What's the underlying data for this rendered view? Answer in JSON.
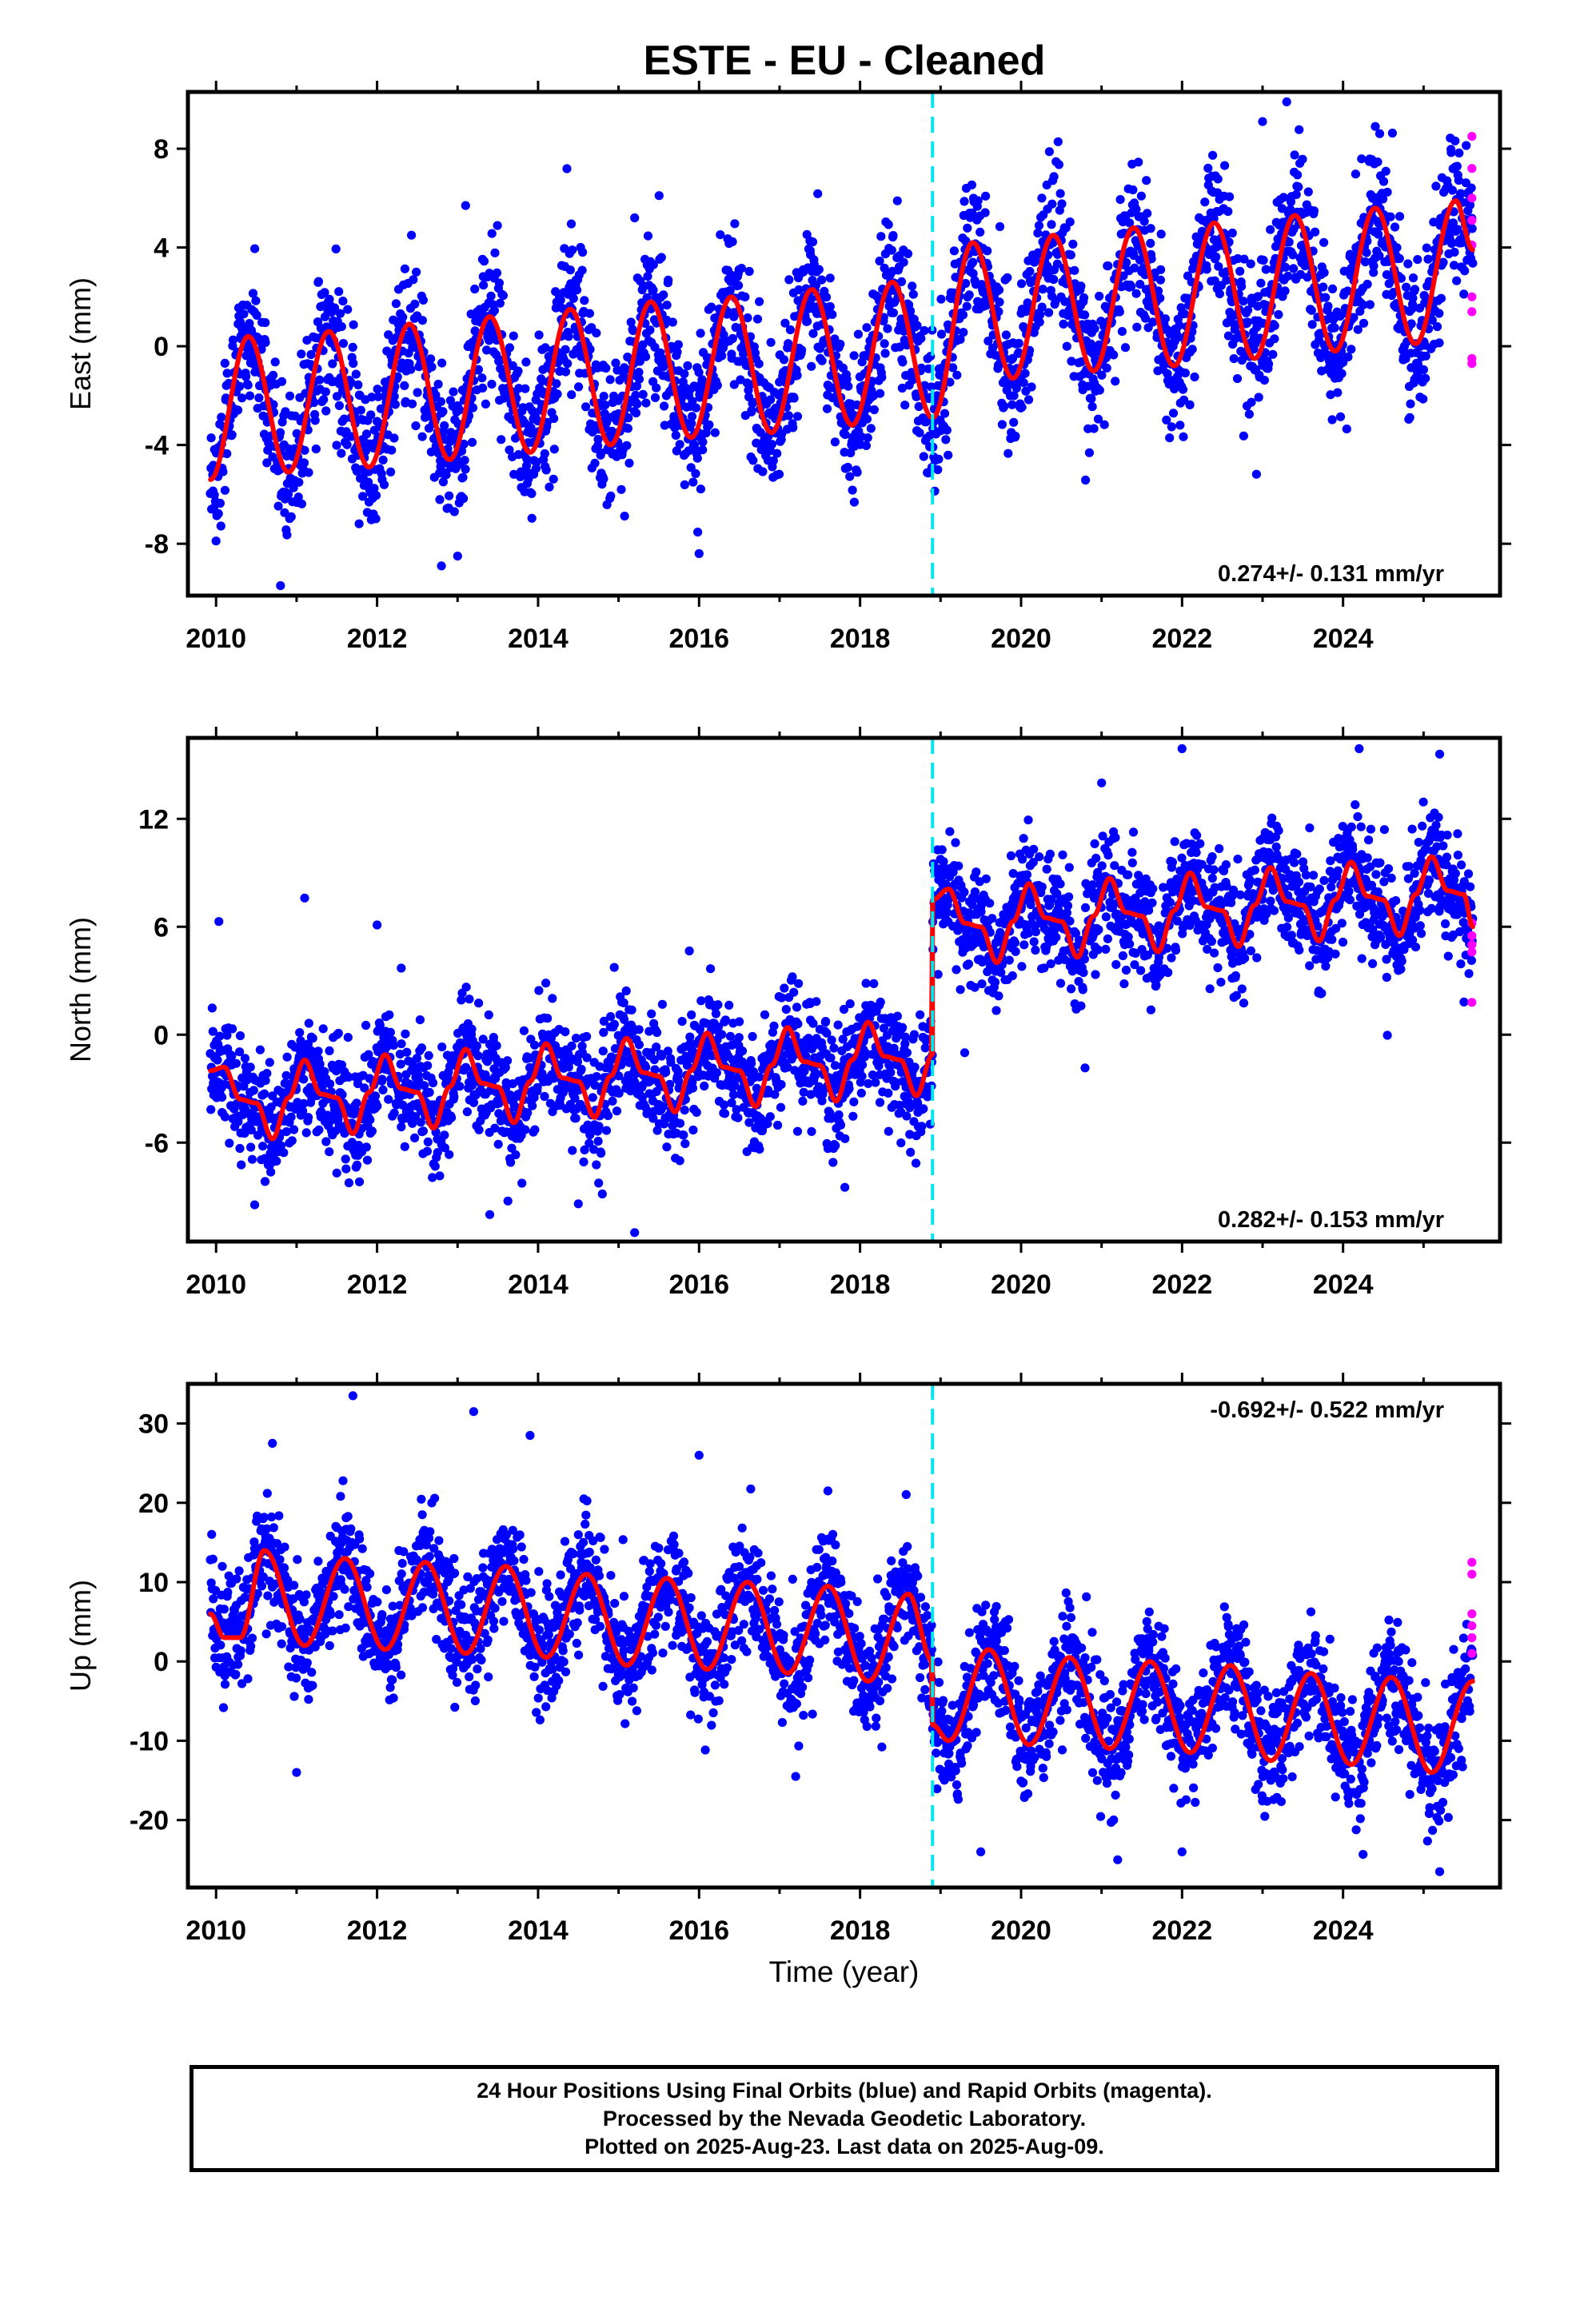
{
  "title": "ESTE  - EU - Cleaned",
  "colors": {
    "final_orbits": "#0000ff",
    "rapid_orbits": "#ff00ff",
    "model_fit": "#ff0000",
    "equipment_change": "#00e5ee",
    "axes": "#000000"
  },
  "caption": {
    "line1": "24 Hour Positions Using Final Orbits (blue) and Rapid Orbits (magenta).",
    "line2": "Processed by the Nevada Geodetic Laboratory.",
    "line3": "Plotted on 2025-Aug-23. Last data on 2025-Aug-09."
  },
  "chart_data": [
    {
      "type": "scatter",
      "component": "east",
      "ylabel": "East (mm)",
      "xlabel": "",
      "xlim": [
        2009.65,
        2025.95
      ],
      "ylim": [
        -10.1,
        10.3
      ],
      "xticks": [
        "2010",
        "2012",
        "2014",
        "2016",
        "2018",
        "2020",
        "2022",
        "2024"
      ],
      "yticks": [
        "-8",
        "-4",
        "0",
        "4",
        "8"
      ],
      "rate_label": "0.274+/- 0.131 mm/yr",
      "rate_label_position": "bottom-right",
      "equipment_change_year": 2018.9,
      "data_start_year": 2009.93,
      "data_end_year": 2025.61,
      "series": [
        {
          "kind": "model",
          "points": [
            [
              2009.93,
              -5.4
            ],
            [
              2010.4,
              0.4
            ],
            [
              2010.9,
              -5.1
            ],
            [
              2011.4,
              0.6
            ],
            [
              2011.9,
              -4.9
            ],
            [
              2012.4,
              0.9
            ],
            [
              2012.9,
              -4.6
            ],
            [
              2013.4,
              1.2
            ],
            [
              2013.9,
              -4.3
            ],
            [
              2014.4,
              1.5
            ],
            [
              2014.9,
              -4.0
            ],
            [
              2015.4,
              1.8
            ],
            [
              2015.9,
              -3.7
            ],
            [
              2016.4,
              2.0
            ],
            [
              2016.9,
              -3.5
            ],
            [
              2017.4,
              2.3
            ],
            [
              2017.9,
              -3.2
            ],
            [
              2018.4,
              2.6
            ],
            [
              2018.9,
              -2.9
            ],
            [
              2019.4,
              4.2
            ],
            [
              2019.9,
              -1.3
            ],
            [
              2020.4,
              4.5
            ],
            [
              2020.9,
              -1.0
            ],
            [
              2021.4,
              4.8
            ],
            [
              2021.9,
              -0.8
            ],
            [
              2022.4,
              5.0
            ],
            [
              2022.9,
              -0.5
            ],
            [
              2023.4,
              5.3
            ],
            [
              2023.9,
              -0.2
            ],
            [
              2024.4,
              5.6
            ],
            [
              2024.9,
              0.1
            ],
            [
              2025.4,
              5.9
            ],
            [
              2025.61,
              3.9
            ]
          ]
        },
        {
          "kind": "rapid_orbits",
          "points": [
            [
              2025.6,
              8.5
            ],
            [
              2025.6,
              7.2
            ],
            [
              2025.6,
              6.0
            ],
            [
              2025.6,
              5.1
            ],
            [
              2025.6,
              4.1
            ],
            [
              2025.6,
              2.0
            ],
            [
              2025.6,
              1.4
            ],
            [
              2025.6,
              -0.5
            ],
            [
              2025.6,
              -0.7
            ]
          ]
        }
      ],
      "scatter_sigma": 1.5,
      "outliers": [
        [
          2010.8,
          -9.7
        ],
        [
          2012.8,
          -8.9
        ],
        [
          2013.0,
          -8.5
        ],
        [
          2016.0,
          -8.4
        ],
        [
          2013.1,
          5.7
        ],
        [
          2015.2,
          5.2
        ],
        [
          2023.0,
          9.1
        ],
        [
          2023.3,
          9.9
        ],
        [
          2024.4,
          8.9
        ]
      ]
    },
    {
      "type": "scatter",
      "component": "north",
      "ylabel": "North (mm)",
      "xlabel": "",
      "xlim": [
        2009.65,
        2025.95
      ],
      "ylim": [
        -11.5,
        16.5
      ],
      "xticks": [
        "2010",
        "2012",
        "2014",
        "2016",
        "2018",
        "2020",
        "2022",
        "2024"
      ],
      "yticks": [
        "-6",
        "0",
        "6",
        "12"
      ],
      "rate_label": "0.282+/- 0.153 mm/yr",
      "rate_label_position": "bottom-right",
      "equipment_change_year": 2018.9,
      "data_start_year": 2009.93,
      "data_end_year": 2025.61,
      "series": [
        {
          "kind": "model",
          "points": [
            [
              2009.93,
              -2.0
            ],
            [
              2010.1,
              -1.8
            ],
            [
              2010.3,
              -3.6
            ],
            [
              2010.5,
              -3.8
            ],
            [
              2010.7,
              -5.8
            ],
            [
              2010.9,
              -3.5
            ],
            [
              2011.1,
              -1.4
            ],
            [
              2011.3,
              -3.3
            ],
            [
              2011.5,
              -3.5
            ],
            [
              2011.7,
              -5.5
            ],
            [
              2011.9,
              -3.2
            ],
            [
              2012.1,
              -1.1
            ],
            [
              2012.3,
              -3.0
            ],
            [
              2012.5,
              -3.2
            ],
            [
              2012.7,
              -5.2
            ],
            [
              2012.9,
              -2.9
            ],
            [
              2013.1,
              -0.8
            ],
            [
              2013.3,
              -2.7
            ],
            [
              2013.5,
              -2.9
            ],
            [
              2013.7,
              -4.9
            ],
            [
              2013.9,
              -2.6
            ],
            [
              2014.1,
              -0.5
            ],
            [
              2014.3,
              -2.4
            ],
            [
              2014.5,
              -2.6
            ],
            [
              2014.7,
              -4.6
            ],
            [
              2014.9,
              -2.3
            ],
            [
              2015.1,
              -0.2
            ],
            [
              2015.3,
              -2.1
            ],
            [
              2015.5,
              -2.3
            ],
            [
              2015.7,
              -4.3
            ],
            [
              2015.9,
              -2.0
            ],
            [
              2016.1,
              0.1
            ],
            [
              2016.3,
              -1.8
            ],
            [
              2016.5,
              -2.0
            ],
            [
              2016.7,
              -4.0
            ],
            [
              2016.9,
              -1.7
            ],
            [
              2017.1,
              0.4
            ],
            [
              2017.3,
              -1.5
            ],
            [
              2017.5,
              -1.7
            ],
            [
              2017.7,
              -3.7
            ],
            [
              2017.9,
              -1.4
            ],
            [
              2018.1,
              0.7
            ],
            [
              2018.3,
              -1.2
            ],
            [
              2018.5,
              -1.4
            ],
            [
              2018.7,
              -3.4
            ],
            [
              2018.9,
              -1.1
            ],
            [
              2018.9,
              7.5
            ],
            [
              2019.1,
              8.1
            ],
            [
              2019.3,
              6.2
            ],
            [
              2019.5,
              6.0
            ],
            [
              2019.7,
              4.0
            ],
            [
              2019.9,
              6.3
            ],
            [
              2020.1,
              8.4
            ],
            [
              2020.3,
              6.5
            ],
            [
              2020.5,
              6.3
            ],
            [
              2020.7,
              4.3
            ],
            [
              2020.9,
              6.6
            ],
            [
              2021.1,
              8.7
            ],
            [
              2021.3,
              6.8
            ],
            [
              2021.5,
              6.6
            ],
            [
              2021.7,
              4.6
            ],
            [
              2021.9,
              6.9
            ],
            [
              2022.1,
              9.0
            ],
            [
              2022.3,
              7.1
            ],
            [
              2022.5,
              6.9
            ],
            [
              2022.7,
              4.9
            ],
            [
              2022.9,
              7.2
            ],
            [
              2023.1,
              9.3
            ],
            [
              2023.3,
              7.4
            ],
            [
              2023.5,
              7.2
            ],
            [
              2023.7,
              5.2
            ],
            [
              2023.9,
              7.5
            ],
            [
              2024.1,
              9.6
            ],
            [
              2024.3,
              7.7
            ],
            [
              2024.5,
              7.5
            ],
            [
              2024.7,
              5.5
            ],
            [
              2024.9,
              7.8
            ],
            [
              2025.1,
              9.9
            ],
            [
              2025.3,
              8.0
            ],
            [
              2025.5,
              7.8
            ],
            [
              2025.61,
              6.0
            ]
          ]
        },
        {
          "kind": "rapid_orbits",
          "points": [
            [
              2025.6,
              6.2
            ],
            [
              2025.6,
              5.5
            ],
            [
              2025.6,
              5.0
            ],
            [
              2025.6,
              4.6
            ],
            [
              2025.6,
              1.8
            ]
          ]
        }
      ],
      "scatter_sigma": 1.6,
      "outliers": [
        [
          2011.1,
          7.6
        ],
        [
          2012.0,
          6.1
        ],
        [
          2015.2,
          -11.0
        ],
        [
          2013.4,
          -10.0
        ],
        [
          2014.5,
          -9.4
        ],
        [
          2021.0,
          14.0
        ],
        [
          2022.0,
          15.9
        ],
        [
          2024.2,
          15.9
        ],
        [
          2025.2,
          15.6
        ],
        [
          2012.3,
          3.7
        ],
        [
          2019.3,
          -1.0
        ]
      ]
    },
    {
      "type": "scatter",
      "component": "up",
      "ylabel": "Up (mm)",
      "xlabel": "Time (year)",
      "xlim": [
        2009.65,
        2025.95
      ],
      "ylim": [
        -28.5,
        35.0
      ],
      "xticks": [
        "2010",
        "2012",
        "2014",
        "2016",
        "2018",
        "2020",
        "2022",
        "2024"
      ],
      "yticks": [
        "-20",
        "-10",
        "0",
        "10",
        "20",
        "30"
      ],
      "rate_label": "-0.692+/- 0.522 mm/yr",
      "rate_label_position": "top-right",
      "equipment_change_year": 2018.9,
      "data_start_year": 2009.93,
      "data_end_year": 2025.61,
      "series": [
        {
          "kind": "model",
          "points": [
            [
              2009.93,
              6.0
            ],
            [
              2010.1,
              3.0
            ],
            [
              2010.3,
              3.0
            ],
            [
              2010.6,
              14.0
            ],
            [
              2011.1,
              2.0
            ],
            [
              2011.6,
              13.0
            ],
            [
              2012.1,
              1.5
            ],
            [
              2012.6,
              12.5
            ],
            [
              2013.1,
              1.0
            ],
            [
              2013.6,
              12.0
            ],
            [
              2014.1,
              0.5
            ],
            [
              2014.6,
              11.0
            ],
            [
              2015.1,
              -0.5
            ],
            [
              2015.6,
              10.5
            ],
            [
              2016.1,
              -1.0
            ],
            [
              2016.6,
              10.0
            ],
            [
              2017.1,
              -1.5
            ],
            [
              2017.6,
              9.5
            ],
            [
              2018.1,
              -2.5
            ],
            [
              2018.6,
              8.5
            ],
            [
              2018.9,
              0.0
            ],
            [
              2018.9,
              -8.0
            ],
            [
              2019.1,
              -10.0
            ],
            [
              2019.6,
              1.5
            ],
            [
              2020.1,
              -10.5
            ],
            [
              2020.6,
              0.5
            ],
            [
              2021.1,
              -11.0
            ],
            [
              2021.6,
              0.0
            ],
            [
              2022.1,
              -11.5
            ],
            [
              2022.6,
              -0.5
            ],
            [
              2023.1,
              -12.5
            ],
            [
              2023.6,
              -1.5
            ],
            [
              2024.1,
              -13.0
            ],
            [
              2024.6,
              -2.0
            ],
            [
              2025.1,
              -14.0
            ],
            [
              2025.61,
              -2.5
            ]
          ]
        },
        {
          "kind": "rapid_orbits",
          "points": [
            [
              2025.6,
              12.5
            ],
            [
              2025.6,
              11.0
            ],
            [
              2025.6,
              6.0
            ],
            [
              2025.6,
              4.5
            ],
            [
              2025.6,
              3.0
            ],
            [
              2025.6,
              1.0
            ]
          ]
        }
      ],
      "scatter_sigma": 3.6,
      "outliers": [
        [
          2011.7,
          33.5
        ],
        [
          2013.2,
          31.5
        ],
        [
          2013.9,
          28.5
        ],
        [
          2010.7,
          27.5
        ],
        [
          2016.0,
          26.0
        ],
        [
          2011.0,
          -14.0
        ],
        [
          2017.2,
          -14.5
        ],
        [
          2019.5,
          -24.0
        ],
        [
          2021.2,
          -25.0
        ],
        [
          2022.0,
          -24.0
        ],
        [
          2025.2,
          -26.5
        ],
        [
          2017.6,
          21.5
        ]
      ]
    }
  ]
}
